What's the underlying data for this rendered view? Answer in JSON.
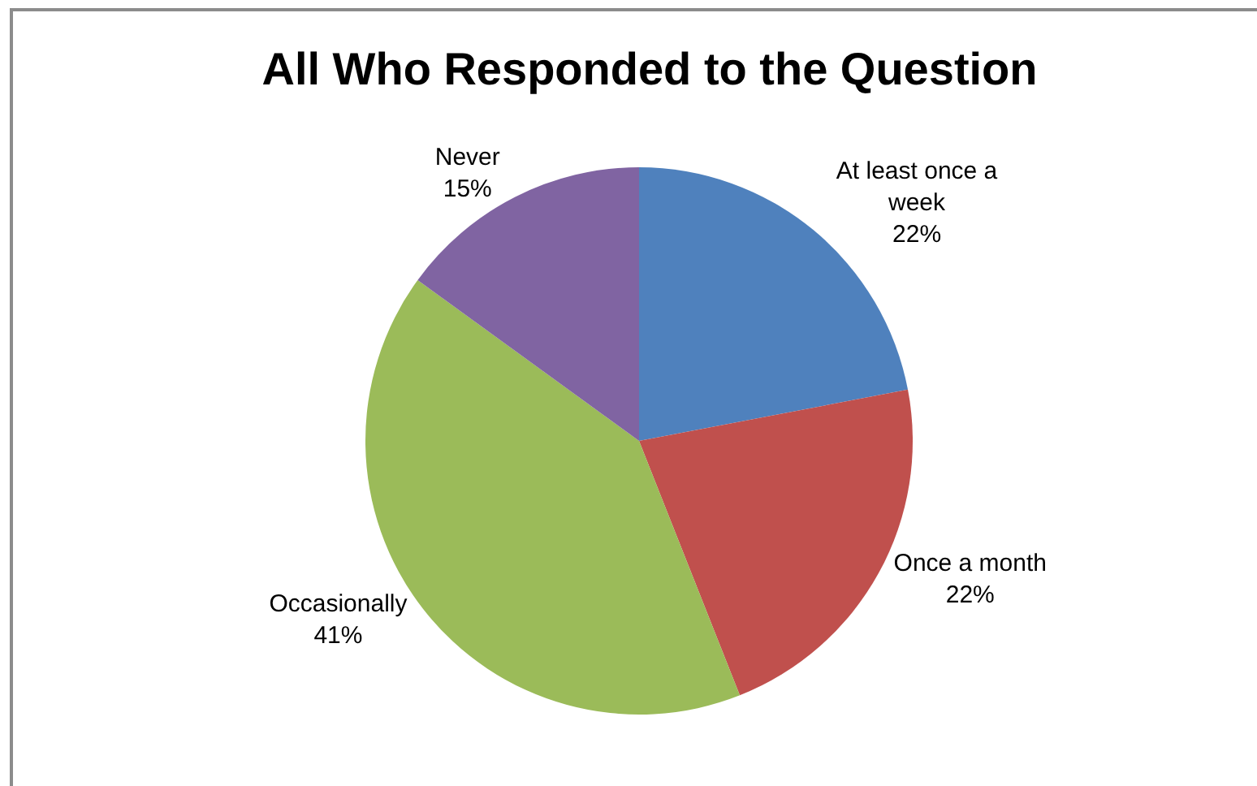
{
  "chart_data": {
    "type": "pie",
    "title": "All Who Responded to the Question",
    "categories": [
      "At least once a week",
      "Once a month",
      "Occasionally",
      "Never"
    ],
    "values": [
      22,
      22,
      41,
      15
    ],
    "colors": [
      "#4f81bd",
      "#c0504d",
      "#9bbb59",
      "#8064a2"
    ],
    "value_labels": [
      "22%",
      "22%",
      "41%",
      "15%"
    ]
  }
}
